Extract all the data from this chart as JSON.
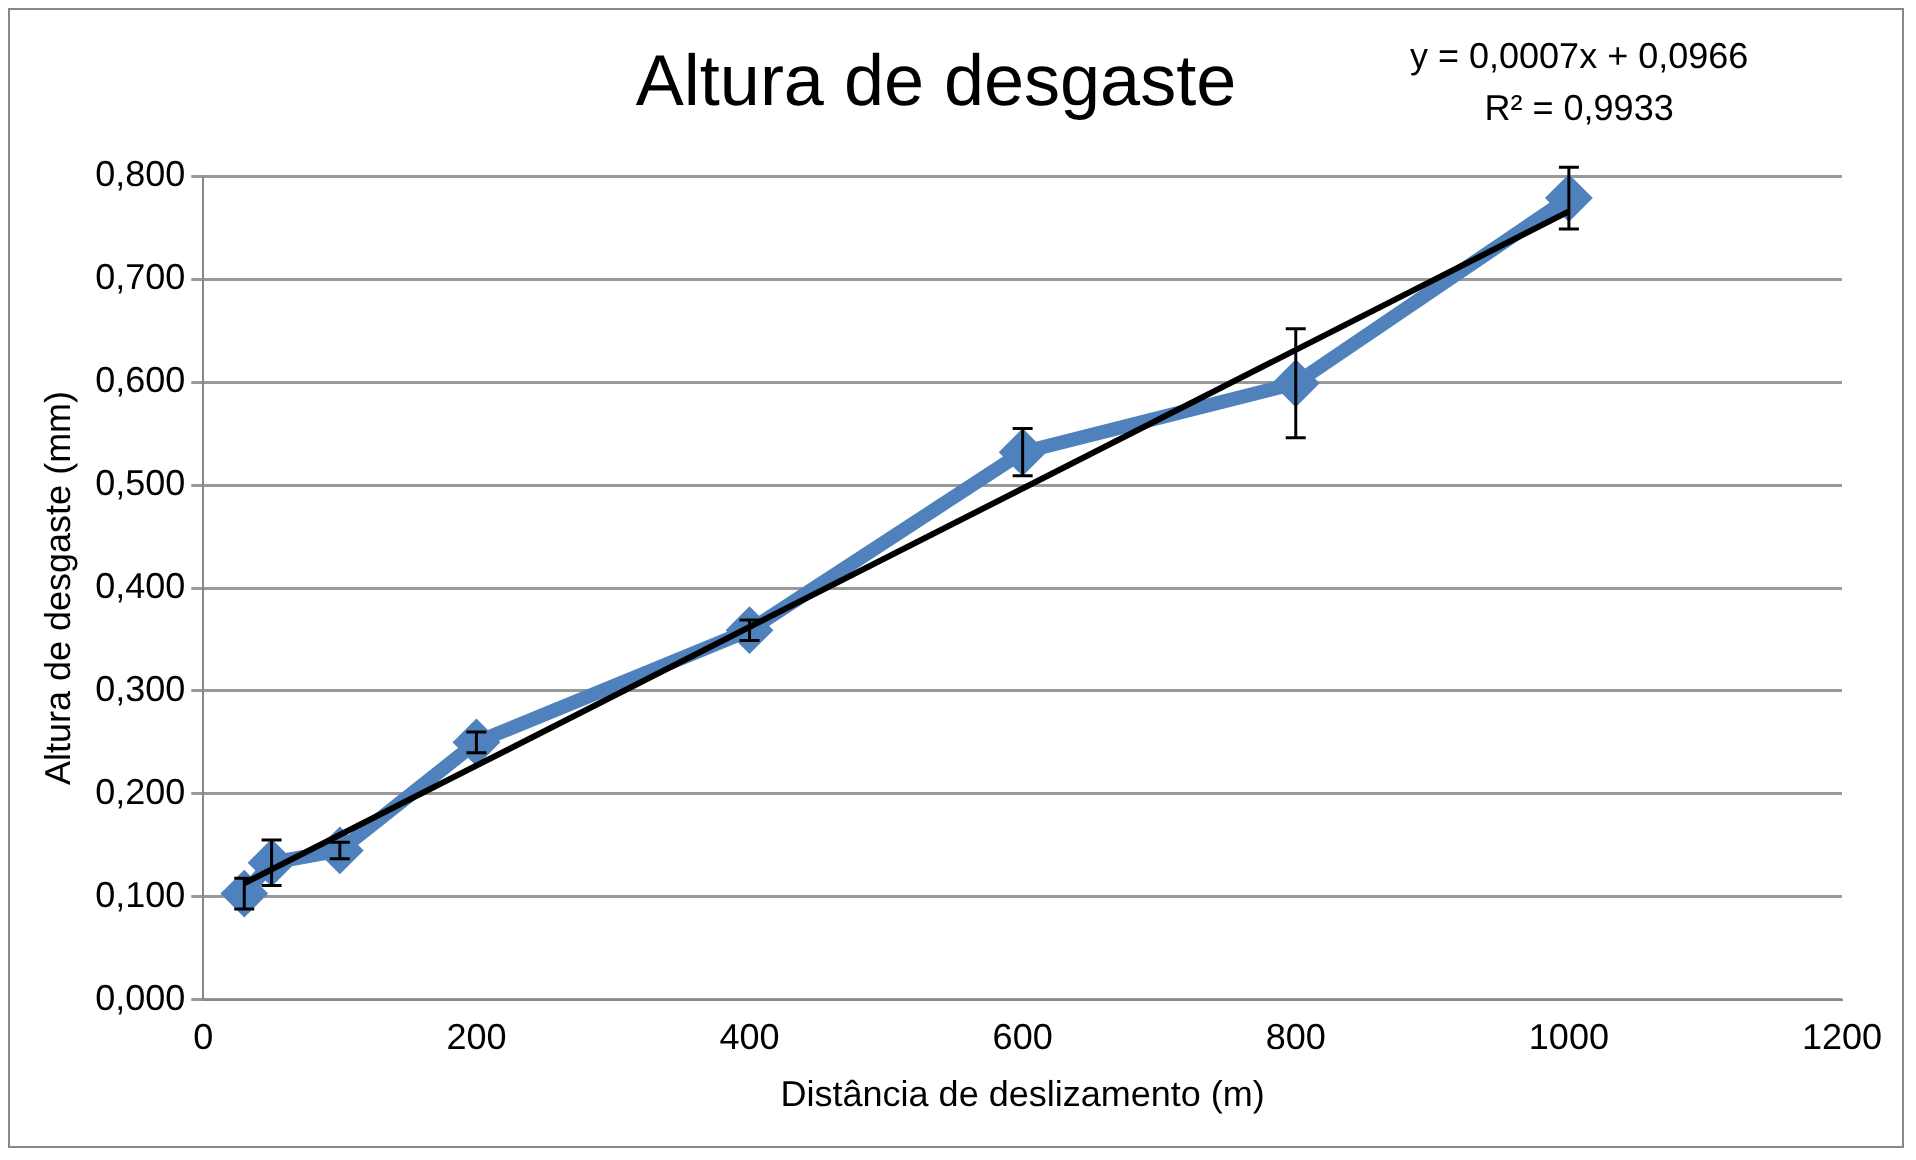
{
  "chart_data": {
    "type": "scatter",
    "title": "Altura de desgaste",
    "xlabel": "Distância de deslizamento (m)",
    "ylabel": "Altura de desgaste (mm)",
    "annotations": [
      "y = 0,0007x + 0,0966",
      "R² = 0,9933"
    ],
    "series": [
      {
        "type": "line",
        "color": "#4f81bd",
        "x": [
          30,
          50,
          100,
          200,
          400,
          600,
          800,
          1000
        ],
        "values": [
          0.103,
          0.133,
          0.145,
          0.25,
          0.359,
          0.532,
          0.599,
          0.779
        ],
        "errors": [
          0.015,
          0.022,
          0.008,
          0.01,
          0.01,
          0.023,
          0.053,
          0.03
        ],
        "marker": "diamond"
      },
      {
        "type": "line",
        "color": "#000000",
        "x": [
          30,
          1000
        ],
        "values": [
          0.113,
          0.766
        ],
        "marker": "none"
      }
    ],
    "xlim": [
      0,
      1200
    ],
    "xticks": [
      0,
      200,
      400,
      600,
      800,
      1000,
      1200
    ],
    "ylim": [
      0,
      0.8
    ],
    "yticks": [
      {
        "value": 0,
        "label": "0,000"
      },
      {
        "value": 0.1,
        "label": "0,100"
      },
      {
        "value": 0.2,
        "label": "0,200"
      },
      {
        "value": 0.3,
        "label": "0,300"
      },
      {
        "value": 0.4,
        "label": "0,400"
      },
      {
        "value": 0.5,
        "label": "0,500"
      },
      {
        "value": 0.6,
        "label": "0,600"
      },
      {
        "value": 0.7,
        "label": "0,700"
      },
      {
        "value": 0.8,
        "label": "0,800"
      }
    ],
    "grid": "y",
    "legend": false
  }
}
